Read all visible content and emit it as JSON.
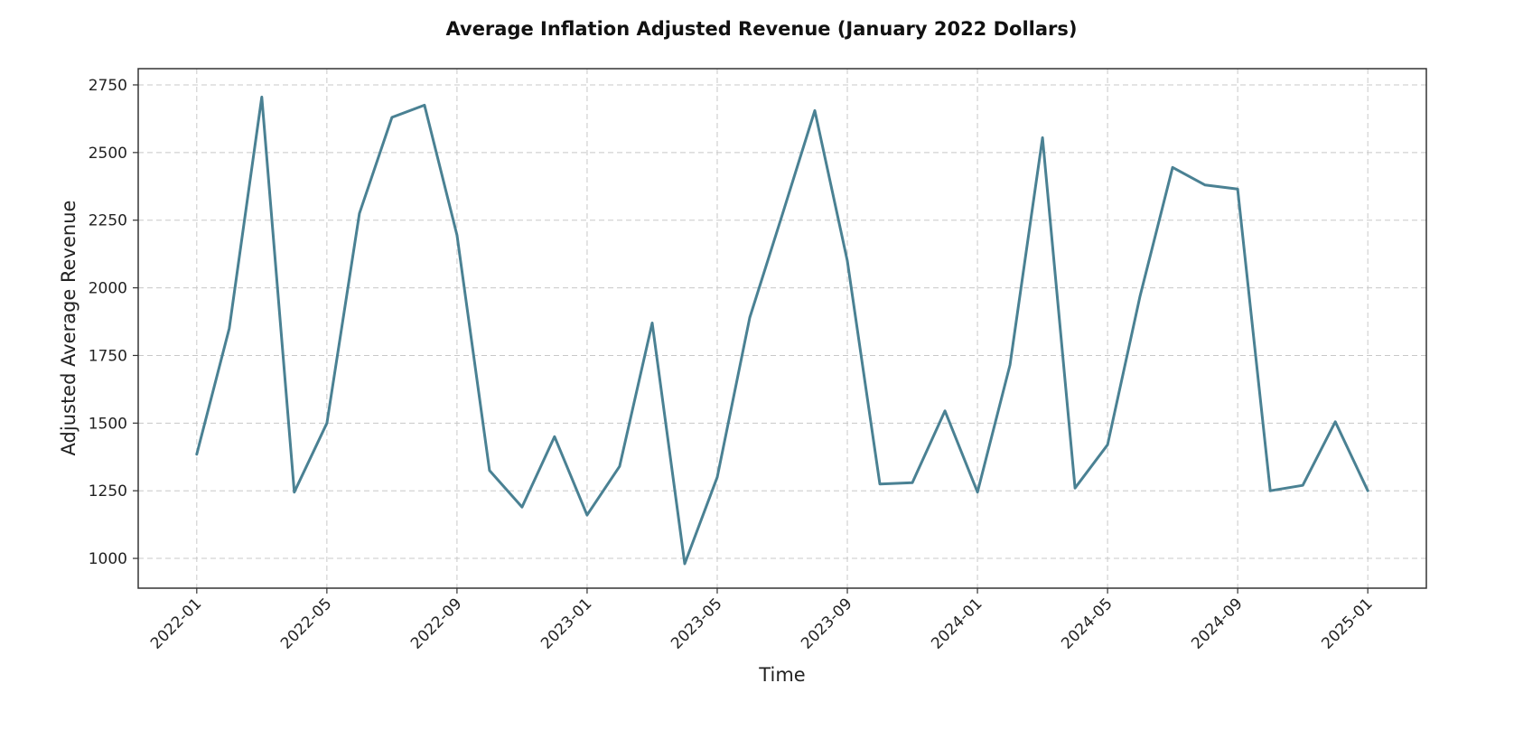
{
  "chart_data": {
    "type": "line",
    "title": "Average Inflation Adjusted Revenue (January 2022 Dollars)",
    "xlabel": "Time",
    "ylabel": "Adjusted Average Revenue",
    "ylim": [
      890,
      2810
    ],
    "yticks": [
      1000,
      1250,
      1500,
      1750,
      2000,
      2250,
      2500,
      2750
    ],
    "xlim_months": [
      -1.8,
      37.8
    ],
    "xticks": [
      {
        "label": "2022-01",
        "month": 0
      },
      {
        "label": "2022-05",
        "month": 4
      },
      {
        "label": "2022-09",
        "month": 8
      },
      {
        "label": "2023-01",
        "month": 12
      },
      {
        "label": "2023-05",
        "month": 16
      },
      {
        "label": "2023-09",
        "month": 20
      },
      {
        "label": "2024-01",
        "month": 24
      },
      {
        "label": "2024-05",
        "month": 28
      },
      {
        "label": "2024-09",
        "month": 32
      },
      {
        "label": "2025-01",
        "month": 36
      }
    ],
    "grid": true,
    "series": [
      {
        "name": "Adjusted Average Revenue",
        "color": "#4a8193",
        "x": [
          "2022-01",
          "2022-02",
          "2022-03",
          "2022-04",
          "2022-05",
          "2022-06",
          "2022-07",
          "2022-08",
          "2022-09",
          "2022-10",
          "2022-11",
          "2022-12",
          "2023-01",
          "2023-02",
          "2023-03",
          "2023-04",
          "2023-05",
          "2023-06",
          "2023-07",
          "2023-08",
          "2023-09",
          "2023-10",
          "2023-11",
          "2023-12",
          "2024-01",
          "2024-02",
          "2024-03",
          "2024-04",
          "2024-05",
          "2024-06",
          "2024-07",
          "2024-08",
          "2024-09",
          "2024-10",
          "2024-11",
          "2024-12",
          "2025-01"
        ],
        "values": [
          1385,
          1850,
          2705,
          1245,
          1500,
          2275,
          2630,
          2675,
          2195,
          1325,
          1190,
          1450,
          1160,
          1340,
          1870,
          980,
          1300,
          1890,
          2270,
          2655,
          2100,
          1275,
          1280,
          1545,
          1245,
          1715,
          2555,
          1260,
          1420,
          1970,
          2445,
          2380,
          2365,
          1250,
          1270,
          1505,
          1250
        ]
      }
    ]
  }
}
